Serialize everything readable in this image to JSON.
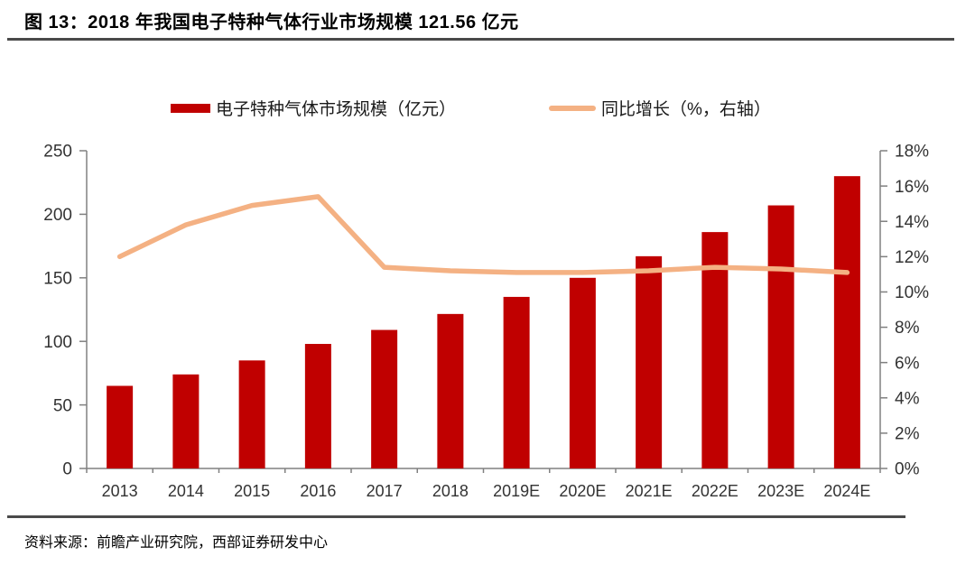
{
  "title": "图 13：2018 年我国电子特种气体行业市场规模 121.56 亿元",
  "source": "资料来源：前瞻产业研究院，西部证券研发中心",
  "colors": {
    "bar": "#C00000",
    "line": "#F4B183",
    "axis": "#808080",
    "tick_label": "#333333",
    "rule": "#4A4A4A"
  },
  "legend": [
    {
      "label": "电子特种气体市场规模（亿元）",
      "swatch": "bar"
    },
    {
      "label": "同比增长（%，右轴）",
      "swatch": "line"
    }
  ],
  "chart_data": {
    "type": "bar+line combo",
    "categories": [
      "2013",
      "2014",
      "2015",
      "2016",
      "2017",
      "2018",
      "2019E",
      "2020E",
      "2021E",
      "2022E",
      "2023E",
      "2024E"
    ],
    "series": [
      {
        "name": "电子特种气体市场规模（亿元）",
        "type": "bar",
        "axis": "left",
        "values": [
          65,
          74,
          85,
          98,
          109,
          121.56,
          135,
          150,
          167,
          186,
          207,
          230
        ]
      },
      {
        "name": "同比增长（%，右轴）",
        "type": "line",
        "axis": "right",
        "values": [
          12.0,
          13.8,
          14.9,
          15.4,
          11.4,
          11.2,
          11.1,
          11.1,
          11.2,
          11.4,
          11.3,
          11.1
        ]
      }
    ],
    "left_axis": {
      "min": 0,
      "max": 250,
      "step": 50,
      "ticks": [
        "0",
        "50",
        "100",
        "150",
        "200",
        "250"
      ]
    },
    "right_axis": {
      "min": 0,
      "max": 18,
      "step": 2,
      "ticks": [
        "0%",
        "2%",
        "4%",
        "6%",
        "8%",
        "10%",
        "12%",
        "14%",
        "16%",
        "18%"
      ]
    },
    "grid": false,
    "legend_position": "top"
  }
}
